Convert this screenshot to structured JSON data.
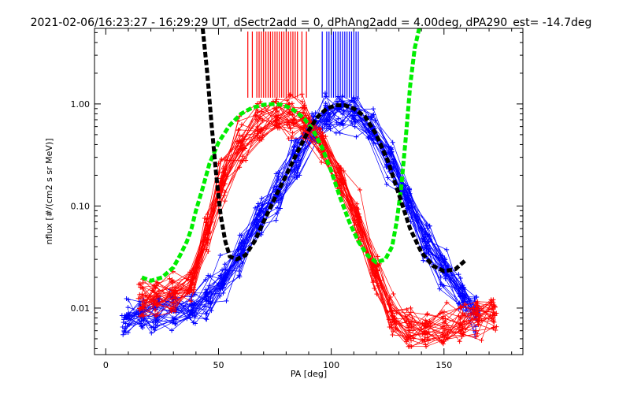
{
  "chart_data": {
    "type": "line",
    "title": "2021-02-06/16:23:27 - 16:29:29 UT, dSectr2add = 0, dPhAng2add = 4.00deg, dPA290_est= -14.7deg",
    "xlabel": "PA [deg]",
    "ylabel": "nflux [#/(cm2 s sr MeV)]",
    "xlim": [
      -5,
      185
    ],
    "ylim": [
      0.0035,
      5.5
    ],
    "yscale": "log",
    "x_ticks": [
      0,
      50,
      100,
      150
    ],
    "x_tick_labels": [
      "0",
      "50",
      "100",
      "150"
    ],
    "y_ticks": [
      0.01,
      0.1,
      1.0
    ],
    "y_tick_labels": [
      "0.01",
      "0.10",
      "1.00"
    ],
    "grid": false,
    "colors": {
      "red": "#ff0000",
      "blue": "#0000ff",
      "green": "#00ee00",
      "black": "#000000"
    },
    "red_profile": {
      "x": [
        16,
        22,
        30,
        38,
        45,
        52,
        60,
        68,
        76,
        82,
        88,
        96,
        104,
        112,
        120,
        127,
        135,
        142,
        150,
        158,
        165,
        172
      ],
      "y": [
        0.013,
        0.014,
        0.015,
        0.02,
        0.06,
        0.2,
        0.45,
        0.7,
        0.85,
        0.88,
        0.75,
        0.45,
        0.2,
        0.08,
        0.025,
        0.009,
        0.007,
        0.007,
        0.007,
        0.008,
        0.009,
        0.01
      ]
    },
    "blue_profile": {
      "x": [
        9,
        16,
        22,
        30,
        38,
        45,
        52,
        60,
        68,
        76,
        84,
        92,
        98,
        104,
        110,
        118,
        126,
        134,
        142,
        150,
        158,
        164
      ],
      "y": [
        0.008,
        0.009,
        0.009,
        0.01,
        0.011,
        0.013,
        0.02,
        0.04,
        0.08,
        0.15,
        0.3,
        0.6,
        0.85,
        0.9,
        0.85,
        0.6,
        0.3,
        0.12,
        0.05,
        0.025,
        0.015,
        0.01
      ]
    },
    "red_marker_pa": [
      63,
      65,
      67,
      68,
      69,
      70,
      71,
      72,
      73,
      74,
      75,
      76,
      77,
      78,
      79,
      80,
      81,
      82,
      83,
      84,
      85,
      87,
      89
    ],
    "blue_marker_pa": [
      96,
      98,
      99,
      100,
      101,
      102,
      103,
      104,
      105,
      106,
      107,
      108,
      109,
      110,
      111,
      112
    ],
    "series": [
      {
        "color": "green",
        "style": "dashed",
        "x": [
          16,
          20,
          25,
          30,
          33,
          36,
          38,
          40,
          43,
          46,
          50,
          55,
          60,
          65,
          70,
          75,
          78,
          81,
          84,
          88,
          92,
          96,
          100,
          104,
          108,
          112,
          116,
          120,
          124,
          127,
          129,
          131,
          133,
          135,
          137,
          139
        ],
        "y": [
          0.02,
          0.0185,
          0.02,
          0.025,
          0.033,
          0.045,
          0.06,
          0.09,
          0.15,
          0.26,
          0.42,
          0.62,
          0.8,
          0.92,
          0.98,
          1.0,
          0.98,
          0.93,
          0.85,
          0.72,
          0.55,
          0.37,
          0.22,
          0.12,
          0.07,
          0.045,
          0.033,
          0.028,
          0.03,
          0.04,
          0.07,
          0.15,
          0.45,
          1.5,
          3.5,
          5.5
        ]
      },
      {
        "color": "black",
        "style": "dashed",
        "x": [
          43,
          45,
          47,
          49,
          51,
          53,
          55,
          58,
          62,
          66,
          70,
          75,
          80,
          85,
          90,
          94,
          98,
          102,
          106,
          110,
          115,
          120,
          125,
          130,
          135,
          140,
          145,
          150,
          155,
          160
        ],
        "y": [
          5.5,
          2.0,
          0.6,
          0.2,
          0.08,
          0.045,
          0.032,
          0.03,
          0.033,
          0.045,
          0.07,
          0.12,
          0.2,
          0.34,
          0.55,
          0.75,
          0.9,
          0.97,
          0.97,
          0.9,
          0.75,
          0.5,
          0.28,
          0.13,
          0.06,
          0.035,
          0.026,
          0.023,
          0.024,
          0.03
        ]
      }
    ]
  }
}
